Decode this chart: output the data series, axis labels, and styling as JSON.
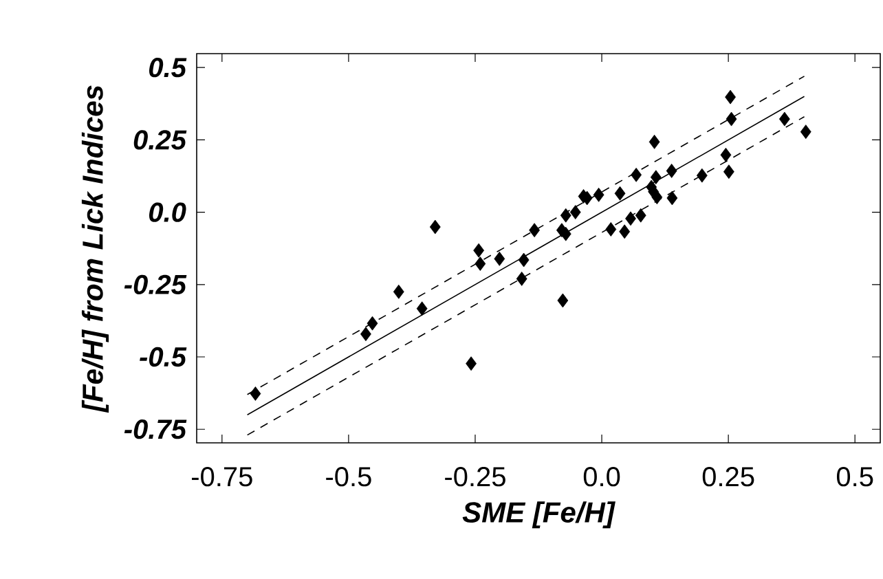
{
  "chart_data": {
    "type": "scatter",
    "xlabel": "SME [Fe/H]",
    "ylabel": "[Fe/H] from Lick Indices",
    "xlim": [
      -0.8,
      0.55
    ],
    "ylim": [
      -0.797,
      0.548
    ],
    "xticks": [
      -0.75,
      -0.5,
      -0.25,
      {
        "value": 0,
        "label": "0.0"
      },
      0.25,
      0.5
    ],
    "yticks": [
      -0.75,
      -0.5,
      -0.25,
      {
        "value": 0,
        "label": "0.0"
      },
      0.25,
      0.5
    ],
    "grid": false,
    "series": [
      {
        "color": "#000000",
        "marker": "diamond",
        "x": [
          -0.684,
          -0.466,
          -0.453,
          -0.401,
          -0.355,
          -0.329,
          -0.243,
          -0.24,
          -0.202,
          -0.258,
          -0.158,
          -0.154,
          -0.133,
          -0.077,
          -0.079,
          -0.071,
          -0.071,
          -0.052,
          -0.036,
          -0.029,
          -0.006,
          0.018,
          0.036,
          0.045,
          0.057,
          0.077,
          0.068,
          0.098,
          0.107,
          0.104,
          0.102,
          0.109,
          0.138,
          0.139,
          0.198,
          0.245,
          0.251,
          0.254,
          0.256,
          0.361,
          0.403
        ],
        "values": [
          -0.627,
          -0.421,
          -0.384,
          -0.275,
          -0.333,
          -0.051,
          -0.132,
          -0.178,
          -0.161,
          -0.523,
          -0.23,
          -0.165,
          -0.062,
          -0.305,
          -0.062,
          -0.075,
          -0.011,
          0.0,
          0.055,
          0.049,
          0.06,
          -0.059,
          0.065,
          -0.067,
          -0.022,
          -0.011,
          0.129,
          0.087,
          0.121,
          0.243,
          0.071,
          0.052,
          0.143,
          0.049,
          0.127,
          0.198,
          0.14,
          0.398,
          0.322,
          0.322,
          0.278
        ]
      },
      {
        "type": "line",
        "color": "#000000",
        "line_style": "solid",
        "x": [
          -0.7,
          0.4
        ],
        "values": [
          -0.7,
          0.4
        ]
      },
      {
        "type": "line",
        "color": "#000000",
        "line_style": "dashed",
        "x": [
          -0.7,
          0.4
        ],
        "values": [
          -0.63,
          0.47
        ]
      },
      {
        "type": "line",
        "color": "#000000",
        "line_style": "dashed",
        "x": [
          -0.7,
          0.4
        ],
        "values": [
          -0.77,
          0.33
        ]
      }
    ]
  }
}
